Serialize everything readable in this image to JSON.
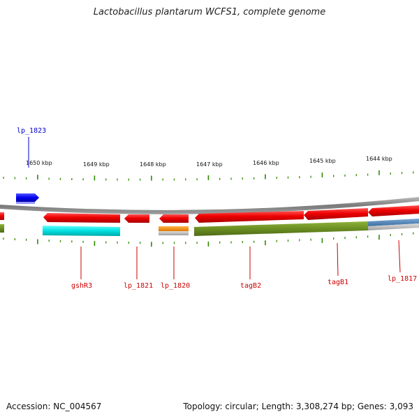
{
  "title": "Lactobacillus plantarum WCFS1, complete genome",
  "footer": {
    "accession": "Accession: NC_004567",
    "summary": "Topology: circular; Length: 3,308,274 bp; Genes: 3,093"
  },
  "ruler": [
    "1650 kbp",
    "1649 kbp",
    "1648 kbp",
    "1647 kbp",
    "1646 kbp",
    "1645 kbp",
    "1644 kbp"
  ],
  "gene_labels": [
    {
      "text": "lp_1823",
      "strand": "forward",
      "color": "#0000cc"
    },
    {
      "text": "gshR3",
      "strand": "reverse",
      "color": "#cc0000"
    },
    {
      "text": "lp_1821",
      "strand": "reverse",
      "color": "#cc0000"
    },
    {
      "text": "lp_1820",
      "strand": "reverse",
      "color": "#cc0000"
    },
    {
      "text": "tagB2",
      "strand": "reverse",
      "color": "#cc0000"
    },
    {
      "text": "tagB1",
      "strand": "reverse",
      "color": "#cc0000"
    },
    {
      "text": "lp_1817",
      "strand": "reverse",
      "color": "#cc0000"
    }
  ],
  "colors": {
    "forward_gene": "#0000ee",
    "reverse_gene": "#ee0000",
    "backbone": "#888888",
    "ticks": "#2e8b00",
    "cog_cyan": "#00e5e5",
    "cog_olive": "#6b8e23",
    "cog_orange": "#ff8c00",
    "cog_steel": "#4682b4",
    "cog_gray": "#b8b8b8"
  }
}
